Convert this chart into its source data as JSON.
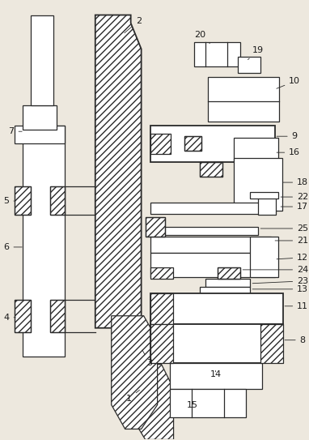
{
  "bg_color": "#ede8de",
  "line_color": "#2a2a2a",
  "label_color": "#1a1a1a",
  "figsize": [
    3.82,
    5.43
  ],
  "dpi": 100
}
